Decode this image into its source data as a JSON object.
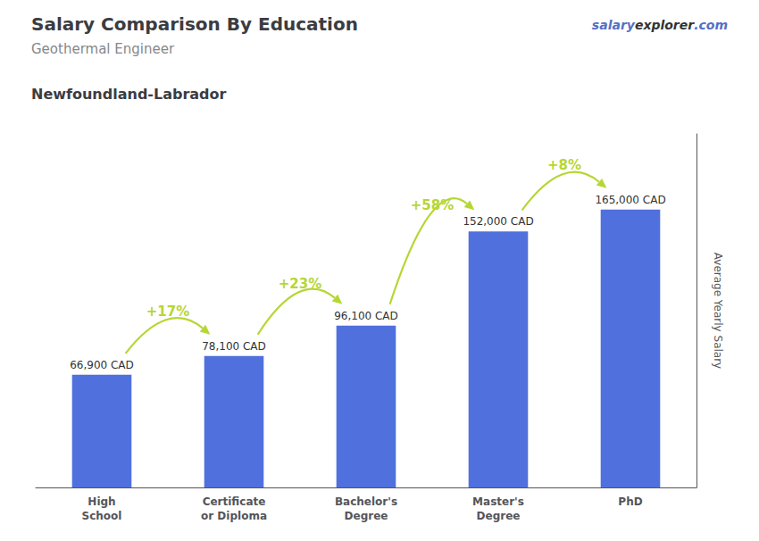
{
  "chart_data": {
    "type": "bar",
    "title": "Salary Comparison By Education",
    "subtitle": "Geothermal Engineer",
    "annotations": [
      "Newfoundland-Labrador"
    ],
    "watermark": [
      "salary",
      "explorer",
      ".com"
    ],
    "ylabel": "Average Yearly Salary",
    "categories": [
      "High\nSchool",
      "Certificate\nor Diploma",
      "Bachelor's\nDegree",
      "Master's\nDegree",
      "PhD"
    ],
    "values": [
      66900,
      78100,
      96100,
      152000,
      165000
    ],
    "value_labels": [
      "66,900 CAD",
      "78,100 CAD",
      "96,100 CAD",
      "152,000 CAD",
      "165,000 CAD"
    ],
    "data_labels": true,
    "changes": [
      {
        "from": "High\nSchool",
        "to": "Certificate\nor Diploma",
        "label": "+17%"
      },
      {
        "from": "Certificate\nor Diploma",
        "to": "Bachelor's\nDegree",
        "label": "+23%"
      },
      {
        "from": "Bachelor's\nDegree",
        "to": "Master's\nDegree",
        "label": "+58%"
      },
      {
        "from": "Master's\nDegree",
        "to": "PhD",
        "label": "+8%"
      }
    ],
    "ylim": [
      0,
      210000
    ],
    "tick_labels": "x",
    "grid": false
  }
}
